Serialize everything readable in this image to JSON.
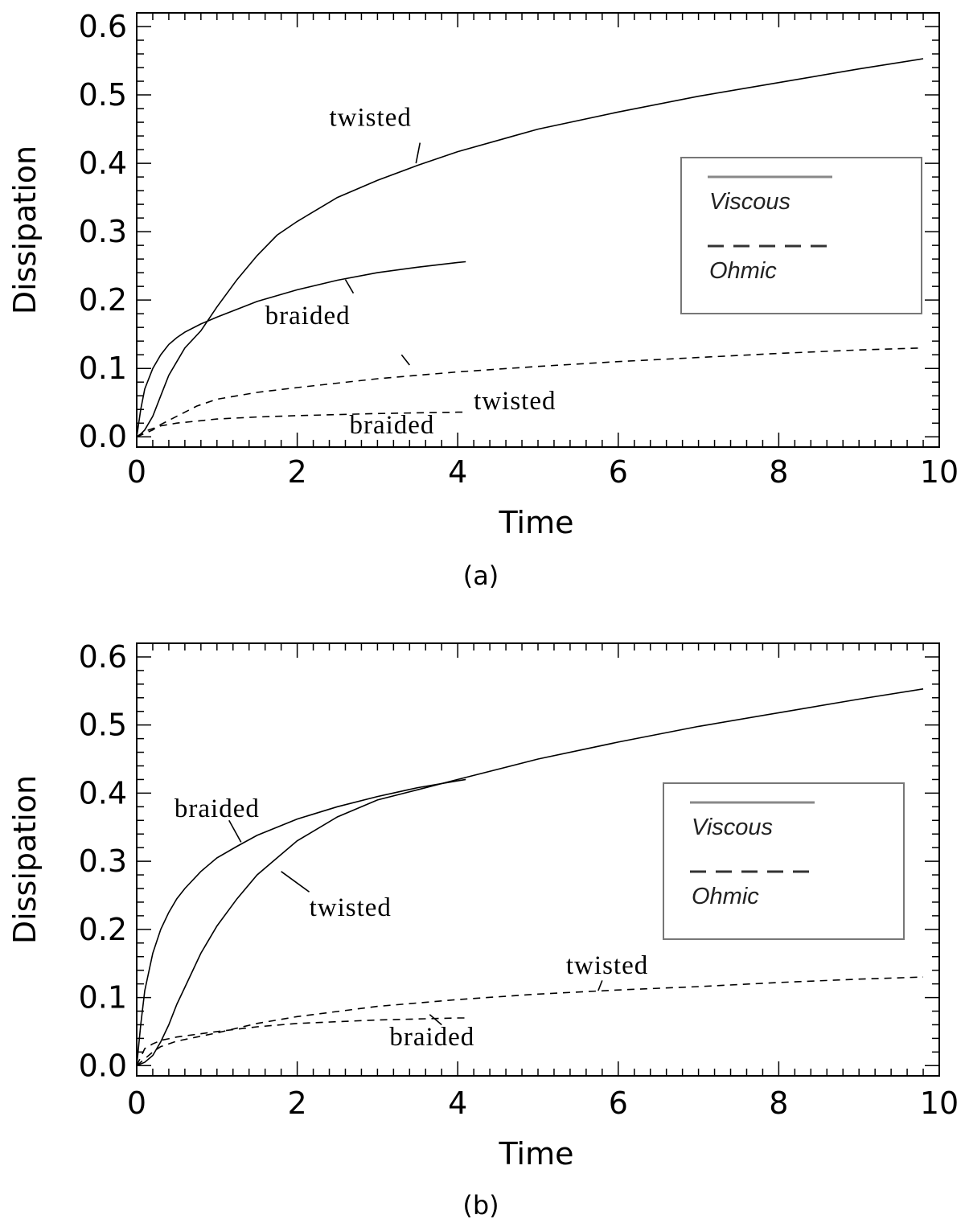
{
  "chart_data": [
    {
      "type": "line",
      "panel_label": "(a)",
      "xlabel": "Time",
      "ylabel": "Dissipation",
      "xlim": [
        0,
        10
      ],
      "ylim": [
        -0.015,
        0.62
      ],
      "xticks": [
        "0",
        "2",
        "4",
        "6",
        "8",
        "10"
      ],
      "yticks": [
        "0.0",
        "0.1",
        "0.2",
        "0.3",
        "0.4",
        "0.5",
        "0.6"
      ],
      "grid": false,
      "legend": {
        "placement": "right",
        "entries": [
          {
            "label": "Viscous",
            "style": "solid"
          },
          {
            "label": "Ohmic",
            "style": "dashed"
          }
        ]
      },
      "series": [
        {
          "style": "solid",
          "color": "#000000",
          "x": [
            0,
            0.05,
            0.1,
            0.2,
            0.3,
            0.4,
            0.5,
            0.6,
            0.8,
            1,
            1.25,
            1.5,
            1.75,
            2,
            2.5,
            3,
            3.5,
            4,
            5,
            6,
            7,
            8,
            9,
            9.8
          ],
          "y": [
            0,
            0.004,
            0.01,
            0.03,
            0.06,
            0.09,
            0.11,
            0.13,
            0.155,
            0.19,
            0.23,
            0.265,
            0.295,
            0.315,
            0.35,
            0.375,
            0.397,
            0.417,
            0.45,
            0.475,
            0.498,
            0.518,
            0.538,
            0.553
          ]
        },
        {
          "style": "solid",
          "color": "#000000",
          "x": [
            0,
            0.05,
            0.1,
            0.2,
            0.3,
            0.4,
            0.5,
            0.6,
            0.8,
            1,
            1.5,
            2,
            2.5,
            3,
            3.5,
            4,
            4.1
          ],
          "y": [
            0,
            0.04,
            0.07,
            0.1,
            0.12,
            0.135,
            0.145,
            0.153,
            0.165,
            0.175,
            0.198,
            0.215,
            0.229,
            0.24,
            0.248,
            0.255,
            0.256
          ]
        },
        {
          "style": "dashed",
          "color": "#000000",
          "x": [
            0,
            0.1,
            0.2,
            0.3,
            0.5,
            0.75,
            1,
            1.5,
            2,
            3,
            4,
            5,
            6,
            7,
            8,
            9,
            9.8
          ],
          "y": [
            0,
            0.005,
            0.01,
            0.018,
            0.03,
            0.045,
            0.055,
            0.065,
            0.072,
            0.085,
            0.095,
            0.103,
            0.11,
            0.116,
            0.122,
            0.127,
            0.13
          ]
        },
        {
          "style": "dashed",
          "color": "#000000",
          "x": [
            0,
            0.1,
            0.2,
            0.3,
            0.5,
            0.75,
            1,
            1.5,
            2,
            3,
            4,
            4.1
          ],
          "y": [
            0,
            0.008,
            0.012,
            0.016,
            0.02,
            0.023,
            0.026,
            0.029,
            0.031,
            0.034,
            0.036,
            0.036
          ]
        }
      ],
      "annotations": [
        {
          "text": "twisted",
          "x": 2.4,
          "y": 0.455,
          "lx1": 3.53,
          "ly1": 0.43,
          "lx2": 3.48,
          "ly2": 0.4
        },
        {
          "text": "braided",
          "x": 1.6,
          "y": 0.165,
          "lx1": 2.7,
          "ly1": 0.21,
          "lx2": 2.6,
          "ly2": 0.23
        },
        {
          "text": "twisted",
          "x": 4.2,
          "y": 0.04,
          "lx1": 3.4,
          "ly1": 0.105,
          "lx2": 3.3,
          "ly2": 0.12
        },
        {
          "text": "braided",
          "x": 2.65,
          "y": 0.005,
          "lx1": 0,
          "ly1": 0,
          "lx2": 0,
          "ly2": 0
        }
      ]
    },
    {
      "type": "line",
      "panel_label": "(b)",
      "xlabel": "Time",
      "ylabel": "Dissipation",
      "xlim": [
        0,
        10
      ],
      "ylim": [
        -0.015,
        0.62
      ],
      "xticks": [
        "0",
        "2",
        "4",
        "6",
        "8",
        "10"
      ],
      "yticks": [
        "0.0",
        "0.1",
        "0.2",
        "0.3",
        "0.4",
        "0.5",
        "0.6"
      ],
      "grid": false,
      "legend": {
        "placement": "right",
        "entries": [
          {
            "label": "Viscous",
            "style": "solid"
          },
          {
            "label": "Ohmic",
            "style": "dashed"
          }
        ]
      },
      "series": [
        {
          "style": "solid",
          "color": "#000000",
          "x": [
            0,
            0.1,
            0.2,
            0.3,
            0.4,
            0.5,
            0.6,
            0.8,
            1,
            1.25,
            1.5,
            1.75,
            2,
            2.5,
            3,
            3.5,
            4,
            5,
            6,
            7,
            8,
            9,
            9.8
          ],
          "y": [
            0,
            0.005,
            0.015,
            0.035,
            0.06,
            0.09,
            0.115,
            0.165,
            0.205,
            0.245,
            0.28,
            0.305,
            0.33,
            0.365,
            0.39,
            0.405,
            0.42,
            0.45,
            0.475,
            0.498,
            0.518,
            0.538,
            0.553
          ]
        },
        {
          "style": "solid",
          "color": "#000000",
          "x": [
            0,
            0.05,
            0.1,
            0.2,
            0.3,
            0.4,
            0.5,
            0.6,
            0.8,
            1,
            1.25,
            1.5,
            2,
            2.5,
            3,
            3.5,
            4,
            4.1
          ],
          "y": [
            0,
            0.06,
            0.11,
            0.165,
            0.2,
            0.225,
            0.245,
            0.26,
            0.285,
            0.305,
            0.322,
            0.338,
            0.362,
            0.38,
            0.395,
            0.408,
            0.418,
            0.42
          ]
        },
        {
          "style": "dashed",
          "color": "#000000",
          "x": [
            0,
            0.1,
            0.2,
            0.3,
            0.5,
            0.75,
            1,
            1.5,
            2,
            3,
            4,
            5,
            6,
            7,
            8,
            9,
            9.8
          ],
          "y": [
            0,
            0.01,
            0.02,
            0.028,
            0.036,
            0.042,
            0.048,
            0.062,
            0.072,
            0.087,
            0.097,
            0.105,
            0.111,
            0.116,
            0.122,
            0.127,
            0.13
          ]
        },
        {
          "style": "dashed",
          "color": "#000000",
          "x": [
            0,
            0.1,
            0.2,
            0.3,
            0.5,
            0.75,
            1,
            1.5,
            2,
            3,
            4,
            4.1
          ],
          "y": [
            0,
            0.025,
            0.032,
            0.037,
            0.042,
            0.046,
            0.05,
            0.057,
            0.062,
            0.067,
            0.07,
            0.07
          ]
        }
      ],
      "annotations": [
        {
          "text": "braided",
          "x": 0.47,
          "y": 0.365,
          "lx1": 1.15,
          "ly1": 0.36,
          "lx2": 1.3,
          "ly2": 0.328
        },
        {
          "text": "twisted",
          "x": 2.15,
          "y": 0.22,
          "lx1": 2.15,
          "ly1": 0.255,
          "lx2": 1.8,
          "ly2": 0.285
        },
        {
          "text": "twisted",
          "x": 5.35,
          "y": 0.135,
          "lx1": 5.8,
          "ly1": 0.125,
          "lx2": 5.75,
          "ly2": 0.11
        },
        {
          "text": "braided",
          "x": 3.15,
          "y": 0.03,
          "lx1": 3.65,
          "ly1": 0.075,
          "lx2": 3.8,
          "ly2": 0.06
        }
      ]
    }
  ]
}
